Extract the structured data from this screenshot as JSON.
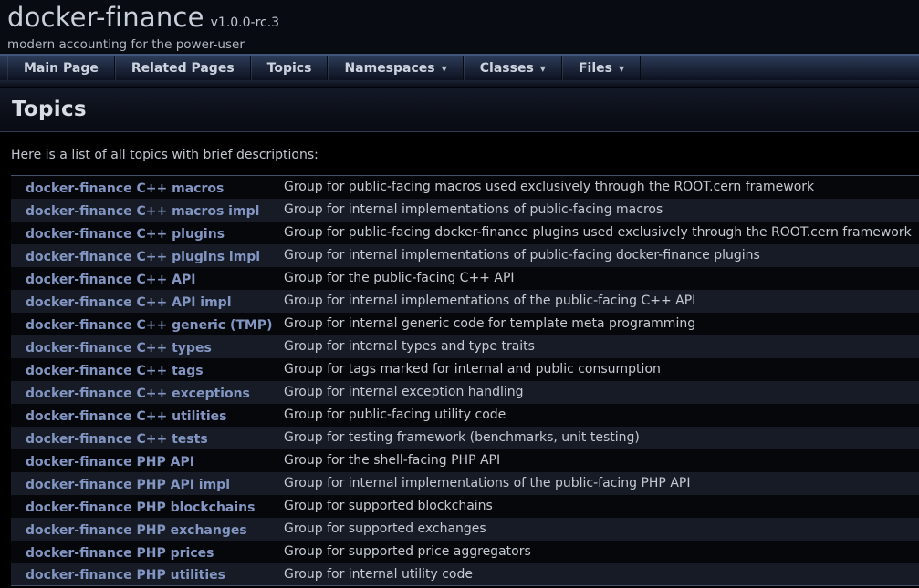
{
  "header": {
    "project_name": "docker-finance",
    "project_version": "v1.0.0-rc.3",
    "project_brief": "modern accounting for the power-user"
  },
  "nav": {
    "dropdown_icon": "▼",
    "tabs": [
      {
        "label": "Main Page",
        "has_dropdown": false
      },
      {
        "label": "Related Pages",
        "has_dropdown": false
      },
      {
        "label": "Topics",
        "has_dropdown": false
      },
      {
        "label": "Namespaces",
        "has_dropdown": true
      },
      {
        "label": "Classes",
        "has_dropdown": true
      },
      {
        "label": "Files",
        "has_dropdown": true
      }
    ]
  },
  "page": {
    "title": "Topics",
    "intro": "Here is a list of all topics with brief descriptions:"
  },
  "table": {
    "rows": [
      {
        "topic": "docker-finance C++ macros",
        "description": "Group for public-facing macros used exclusively through the ROOT.cern framework"
      },
      {
        "topic": "docker-finance C++ macros impl",
        "description": "Group for internal implementations of public-facing macros"
      },
      {
        "topic": "docker-finance C++ plugins",
        "description": "Group for public-facing docker-finance plugins used exclusively through the ROOT.cern framework"
      },
      {
        "topic": "docker-finance C++ plugins impl",
        "description": "Group for internal implementations of public-facing docker-finance plugins"
      },
      {
        "topic": "docker-finance C++ API",
        "description": "Group for the public-facing C++ API"
      },
      {
        "topic": "docker-finance C++ API impl",
        "description": "Group for internal implementations of the public-facing C++ API"
      },
      {
        "topic": "docker-finance C++ generic (TMP)",
        "description": "Group for internal generic code for template meta programming"
      },
      {
        "topic": "docker-finance C++ types",
        "description": "Group for internal types and type traits"
      },
      {
        "topic": "docker-finance C++ tags",
        "description": "Group for tags marked for internal and public consumption"
      },
      {
        "topic": "docker-finance C++ exceptions",
        "description": "Group for internal exception handling"
      },
      {
        "topic": "docker-finance C++ utilities",
        "description": "Group for public-facing utility code"
      },
      {
        "topic": "docker-finance C++ tests",
        "description": "Group for testing framework (benchmarks, unit testing)"
      },
      {
        "topic": "docker-finance PHP API",
        "description": "Group for the shell-facing PHP API"
      },
      {
        "topic": "docker-finance PHP API impl",
        "description": "Group for internal implementations of the public-facing PHP API"
      },
      {
        "topic": "docker-finance PHP blockchains",
        "description": "Group for supported blockchains"
      },
      {
        "topic": "docker-finance PHP exchanges",
        "description": "Group for supported exchanges"
      },
      {
        "topic": "docker-finance PHP prices",
        "description": "Group for supported price aggregators"
      },
      {
        "topic": "docker-finance PHP utilities",
        "description": "Group for internal utility code"
      }
    ]
  },
  "colors": {
    "link": "#8396c3",
    "nav_top_border": "#3f567a",
    "row_even_bg": "#161b26",
    "row_odd_bg": "#05070b",
    "page_bg": "#000000"
  }
}
